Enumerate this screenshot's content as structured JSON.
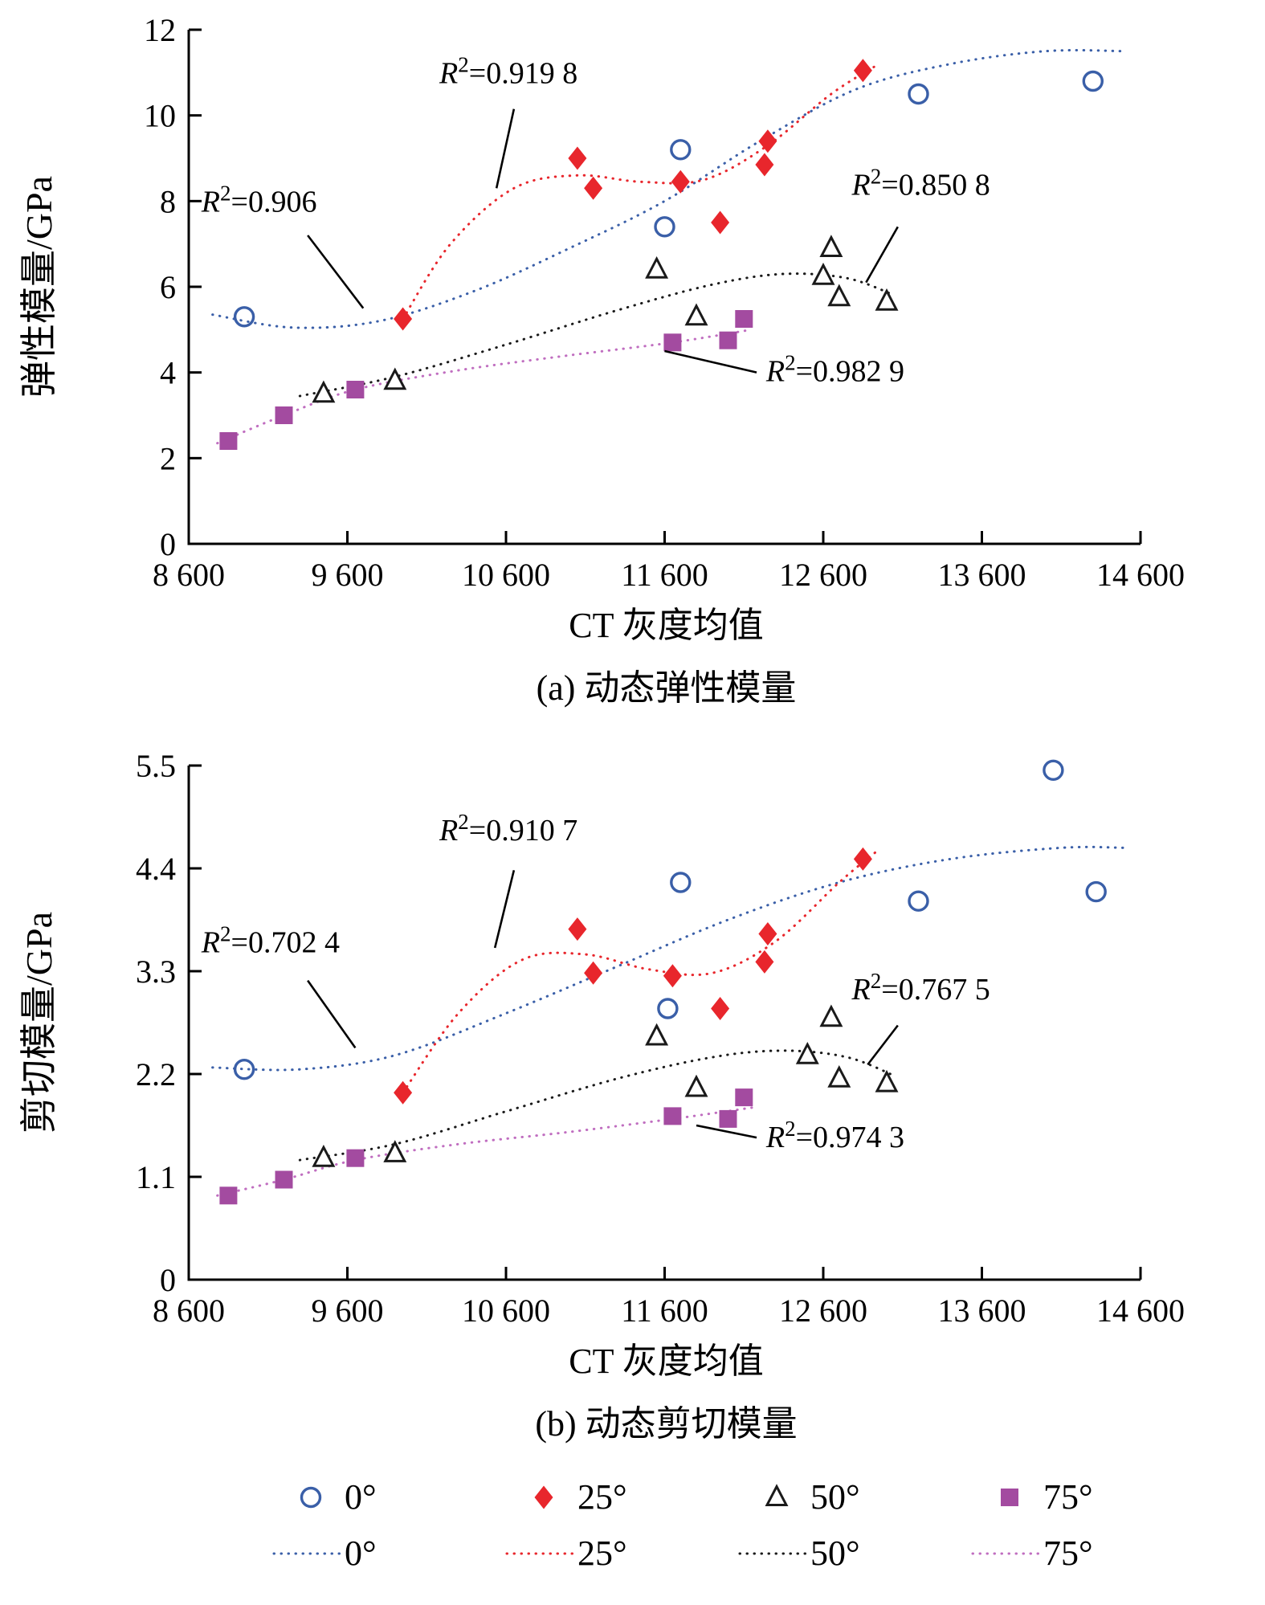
{
  "figure": {
    "legend_position": "bottom",
    "legend": {
      "marker_row": [
        {
          "label": "0°",
          "marker": "circle",
          "color": "#3a5fa8"
        },
        {
          "label": "25°",
          "marker": "diamond",
          "color": "#e8262c"
        },
        {
          "label": "50°",
          "marker": "triangle",
          "color": "#1a1a1a"
        },
        {
          "label": "75°",
          "marker": "square",
          "color": "#a34ba0"
        }
      ],
      "line_row": [
        {
          "label": "0°",
          "color": "#3a5fa8"
        },
        {
          "label": "25°",
          "color": "#e8262c"
        },
        {
          "label": "50°",
          "color": "#1a1a1a"
        },
        {
          "label": "75°",
          "color": "#c06ec0"
        }
      ]
    }
  },
  "chart_data": [
    {
      "type": "scatter",
      "title": "(a) 动态弹性模量",
      "xlabel": "CT 灰度均值",
      "ylabel": "弹性模量/GPa",
      "xlim": [
        8600,
        14600
      ],
      "ylim": [
        0,
        12
      ],
      "grid": false,
      "x_ticks": {
        "values": [
          8600,
          9600,
          10600,
          11600,
          12600,
          13600,
          14600
        ],
        "labels": [
          "8 600",
          "9 600",
          "10 600",
          "11 600",
          "12 600",
          "13 600",
          "14 600"
        ]
      },
      "y_ticks": {
        "values": [
          0,
          2,
          4,
          6,
          8,
          10,
          12
        ],
        "labels": [
          "0",
          "2",
          "4",
          "6",
          "8",
          "10",
          "12"
        ]
      },
      "series": [
        {
          "name": "0°",
          "marker": "circle",
          "color": "#3a5fa8",
          "line_color": "#3a5fa8",
          "r2": "0.906",
          "points": [
            [
              8950,
              5.3
            ],
            [
              11600,
              7.4
            ],
            [
              11700,
              9.2
            ],
            [
              13200,
              10.5
            ],
            [
              14300,
              10.8
            ]
          ],
          "fit": [
            [
              8750,
              5.35
            ],
            [
              9250,
              5.05
            ],
            [
              9800,
              5.2
            ],
            [
              10400,
              5.9
            ],
            [
              11000,
              6.9
            ],
            [
              11600,
              8.0
            ],
            [
              12200,
              9.4
            ],
            [
              12800,
              10.6
            ],
            [
              13400,
              11.2
            ],
            [
              14000,
              11.5
            ],
            [
              14500,
              11.5
            ]
          ]
        },
        {
          "name": "25°",
          "marker": "diamond",
          "color": "#e8262c",
          "line_color": "#e8262c",
          "r2": "0.919 8",
          "points": [
            [
              9950,
              5.25
            ],
            [
              11050,
              9.0
            ],
            [
              11150,
              8.3
            ],
            [
              11700,
              8.45
            ],
            [
              11950,
              7.5
            ],
            [
              12230,
              8.85
            ],
            [
              12250,
              9.4
            ],
            [
              12850,
              11.05
            ]
          ],
          "fit": [
            [
              9950,
              5.25
            ],
            [
              10250,
              7.0
            ],
            [
              10650,
              8.3
            ],
            [
              11050,
              8.6
            ],
            [
              11450,
              8.45
            ],
            [
              11850,
              8.5
            ],
            [
              12250,
              9.3
            ],
            [
              12650,
              10.5
            ],
            [
              12950,
              11.2
            ]
          ]
        },
        {
          "name": "50°",
          "marker": "triangle",
          "color": "#1a1a1a",
          "line_color": "#1a1a1a",
          "r2": "0.850 8",
          "points": [
            [
              9450,
              3.5
            ],
            [
              9900,
              3.8
            ],
            [
              11550,
              6.4
            ],
            [
              11800,
              5.3
            ],
            [
              12600,
              6.25
            ],
            [
              12650,
              6.9
            ],
            [
              12700,
              5.75
            ],
            [
              13000,
              5.65
            ]
          ],
          "fit": [
            [
              9300,
              3.45
            ],
            [
              9900,
              3.9
            ],
            [
              10600,
              4.65
            ],
            [
              11300,
              5.45
            ],
            [
              11900,
              6.05
            ],
            [
              12350,
              6.3
            ],
            [
              12750,
              6.2
            ],
            [
              13050,
              5.8
            ]
          ]
        },
        {
          "name": "75°",
          "marker": "square",
          "color": "#a34ba0",
          "line_color": "#c06ec0",
          "r2": "0.982 9",
          "points": [
            [
              8850,
              2.4
            ],
            [
              9200,
              3.0
            ],
            [
              9650,
              3.6
            ],
            [
              11650,
              4.7
            ],
            [
              12000,
              4.75
            ],
            [
              12100,
              5.25
            ]
          ],
          "fit": [
            [
              8780,
              2.35
            ],
            [
              9200,
              3.0
            ],
            [
              9650,
              3.6
            ],
            [
              10300,
              4.05
            ],
            [
              11000,
              4.4
            ],
            [
              11650,
              4.7
            ],
            [
              12150,
              5.0
            ]
          ]
        }
      ],
      "annotations": [
        {
          "text": "R²=0.906",
          "x": 8680,
          "y": 7.75,
          "leader": [
            [
              9350,
              7.2
            ],
            [
              9700,
              5.5
            ]
          ]
        },
        {
          "text": "R²=0.919 8",
          "x": 10180,
          "y": 10.75,
          "leader": [
            [
              10650,
              10.15
            ],
            [
              10540,
              8.3
            ]
          ]
        },
        {
          "text": "R²=0.850 8",
          "x": 12780,
          "y": 8.15,
          "leader": [
            [
              13070,
              7.4
            ],
            [
              12870,
              6.1
            ]
          ]
        },
        {
          "text": "R²=0.982 9",
          "x": 12240,
          "y": 3.8,
          "leader": [
            [
              12180,
              4.0
            ],
            [
              11600,
              4.5
            ]
          ]
        }
      ]
    },
    {
      "type": "scatter",
      "title": "(b) 动态剪切模量",
      "xlabel": "CT 灰度均值",
      "ylabel": "剪切模量/GPa",
      "xlim": [
        8600,
        14600
      ],
      "ylim": [
        0,
        5.5
      ],
      "grid": false,
      "x_ticks": {
        "values": [
          8600,
          9600,
          10600,
          11600,
          12600,
          13600,
          14600
        ],
        "labels": [
          "8 600",
          "9 600",
          "10 600",
          "11 600",
          "12 600",
          "13 600",
          "14 600"
        ]
      },
      "y_ticks": {
        "values": [
          0,
          1.1,
          2.2,
          3.3,
          4.4,
          5.5
        ],
        "labels": [
          "0",
          "1.1",
          "2.2",
          "3.3",
          "4.4",
          "5.5"
        ]
      },
      "series": [
        {
          "name": "0°",
          "marker": "circle",
          "color": "#3a5fa8",
          "line_color": "#3a5fa8",
          "r2": "0.702 4",
          "points": [
            [
              8950,
              2.25
            ],
            [
              11620,
              2.9
            ],
            [
              11700,
              4.25
            ],
            [
              13200,
              4.05
            ],
            [
              14050,
              5.45
            ],
            [
              14320,
              4.15
            ]
          ],
          "fit": [
            [
              8750,
              2.27
            ],
            [
              9300,
              2.25
            ],
            [
              9900,
              2.4
            ],
            [
              10600,
              2.85
            ],
            [
              11300,
              3.35
            ],
            [
              12000,
              3.85
            ],
            [
              12700,
              4.25
            ],
            [
              13400,
              4.5
            ],
            [
              14100,
              4.62
            ],
            [
              14500,
              4.62
            ]
          ]
        },
        {
          "name": "25°",
          "marker": "diamond",
          "color": "#e8262c",
          "line_color": "#e8262c",
          "r2": "0.910 7",
          "points": [
            [
              9950,
              2.0
            ],
            [
              11050,
              3.75
            ],
            [
              11150,
              3.28
            ],
            [
              11650,
              3.25
            ],
            [
              11950,
              2.9
            ],
            [
              12230,
              3.4
            ],
            [
              12250,
              3.7
            ],
            [
              12850,
              4.5
            ]
          ],
          "fit": [
            [
              9950,
              2.0
            ],
            [
              10300,
              2.85
            ],
            [
              10700,
              3.42
            ],
            [
              11100,
              3.48
            ],
            [
              11500,
              3.32
            ],
            [
              11900,
              3.28
            ],
            [
              12300,
              3.62
            ],
            [
              12700,
              4.25
            ],
            [
              12950,
              4.6
            ]
          ]
        },
        {
          "name": "50°",
          "marker": "triangle",
          "color": "#1a1a1a",
          "line_color": "#1a1a1a",
          "r2": "0.767 5",
          "points": [
            [
              9450,
              1.3
            ],
            [
              9900,
              1.35
            ],
            [
              11550,
              2.6
            ],
            [
              11800,
              2.05
            ],
            [
              12500,
              2.4
            ],
            [
              12650,
              2.8
            ],
            [
              12700,
              2.15
            ],
            [
              13000,
              2.1
            ]
          ],
          "fit": [
            [
              9300,
              1.28
            ],
            [
              9900,
              1.45
            ],
            [
              10600,
              1.8
            ],
            [
              11300,
              2.15
            ],
            [
              11900,
              2.38
            ],
            [
              12350,
              2.45
            ],
            [
              12750,
              2.38
            ],
            [
              13050,
              2.18
            ]
          ]
        },
        {
          "name": "75°",
          "marker": "square",
          "color": "#a34ba0",
          "line_color": "#c06ec0",
          "r2": "0.974 3",
          "points": [
            [
              8850,
              0.9
            ],
            [
              9200,
              1.07
            ],
            [
              9650,
              1.3
            ],
            [
              11650,
              1.75
            ],
            [
              12000,
              1.72
            ],
            [
              12100,
              1.95
            ]
          ],
          "fit": [
            [
              8780,
              0.9
            ],
            [
              9200,
              1.07
            ],
            [
              9650,
              1.28
            ],
            [
              10300,
              1.45
            ],
            [
              11000,
              1.58
            ],
            [
              11650,
              1.72
            ],
            [
              12150,
              1.84
            ]
          ]
        }
      ],
      "annotations": [
        {
          "text": "R²=0.702 4",
          "x": 8680,
          "y": 3.5,
          "leader": [
            [
              9350,
              3.2
            ],
            [
              9650,
              2.48
            ]
          ]
        },
        {
          "text": "R²=0.910 7",
          "x": 10180,
          "y": 4.7,
          "leader": [
            [
              10650,
              4.38
            ],
            [
              10530,
              3.55
            ]
          ]
        },
        {
          "text": "R²=0.767 5",
          "x": 12780,
          "y": 3.0,
          "leader": [
            [
              13070,
              2.72
            ],
            [
              12880,
              2.3
            ]
          ]
        },
        {
          "text": "R²=0.974 3",
          "x": 12240,
          "y": 1.42,
          "leader": [
            [
              12180,
              1.52
            ],
            [
              11800,
              1.65
            ]
          ]
        }
      ]
    }
  ]
}
